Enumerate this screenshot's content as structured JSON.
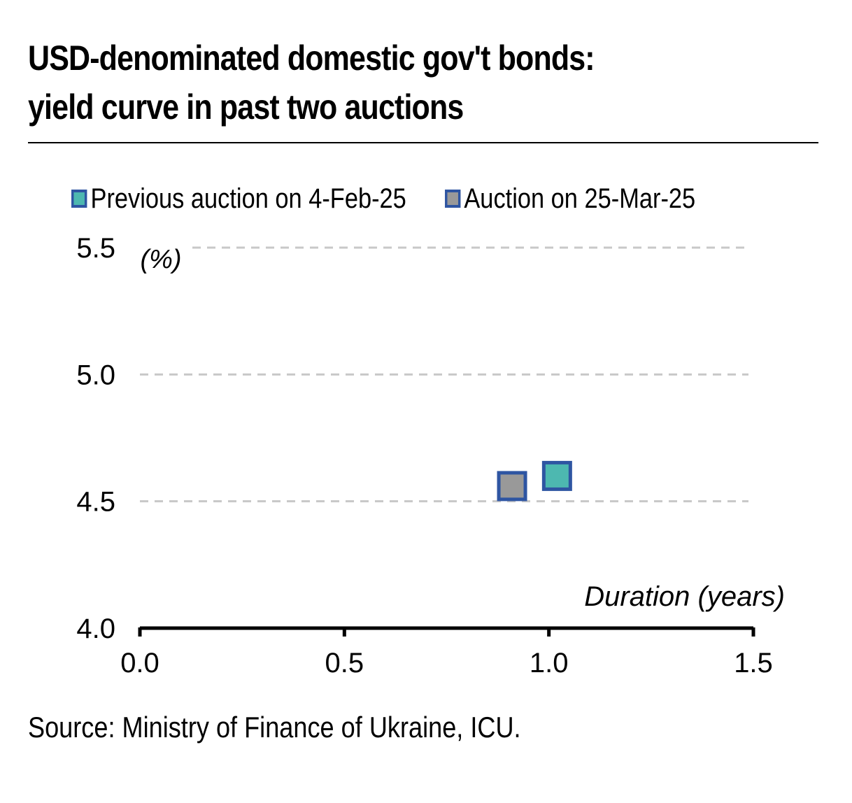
{
  "title_line1": "USD-denominated domestic gov't bonds:",
  "title_line2": "yield curve in past two auctions",
  "source": "Source: Ministry of Finance of Ukraine, ICU.",
  "colors": {
    "previous": "#4DB8B0",
    "current": "#999999",
    "marker_border": "#2E55A2",
    "grid": "#C8C8C8",
    "axis": "#000000"
  },
  "chart_data": {
    "type": "scatter",
    "ylabel": "(%)",
    "xlabel": "Duration (years)",
    "xlim": [
      0.0,
      1.5
    ],
    "ylim": [
      4.0,
      5.5
    ],
    "x_ticks": [
      "0.0",
      "0.5",
      "1.0",
      "1.5"
    ],
    "y_ticks": [
      "4.0",
      "4.5",
      "5.0",
      "5.5"
    ],
    "grid": "horizontal dashed",
    "legend_position": "top",
    "series": [
      {
        "name": "Previous auction on 4-Feb-25",
        "points": [
          {
            "x": 1.02,
            "y": 4.6
          }
        ]
      },
      {
        "name": "Auction on 25-Mar-25",
        "points": [
          {
            "x": 0.91,
            "y": 4.56
          }
        ]
      }
    ]
  }
}
